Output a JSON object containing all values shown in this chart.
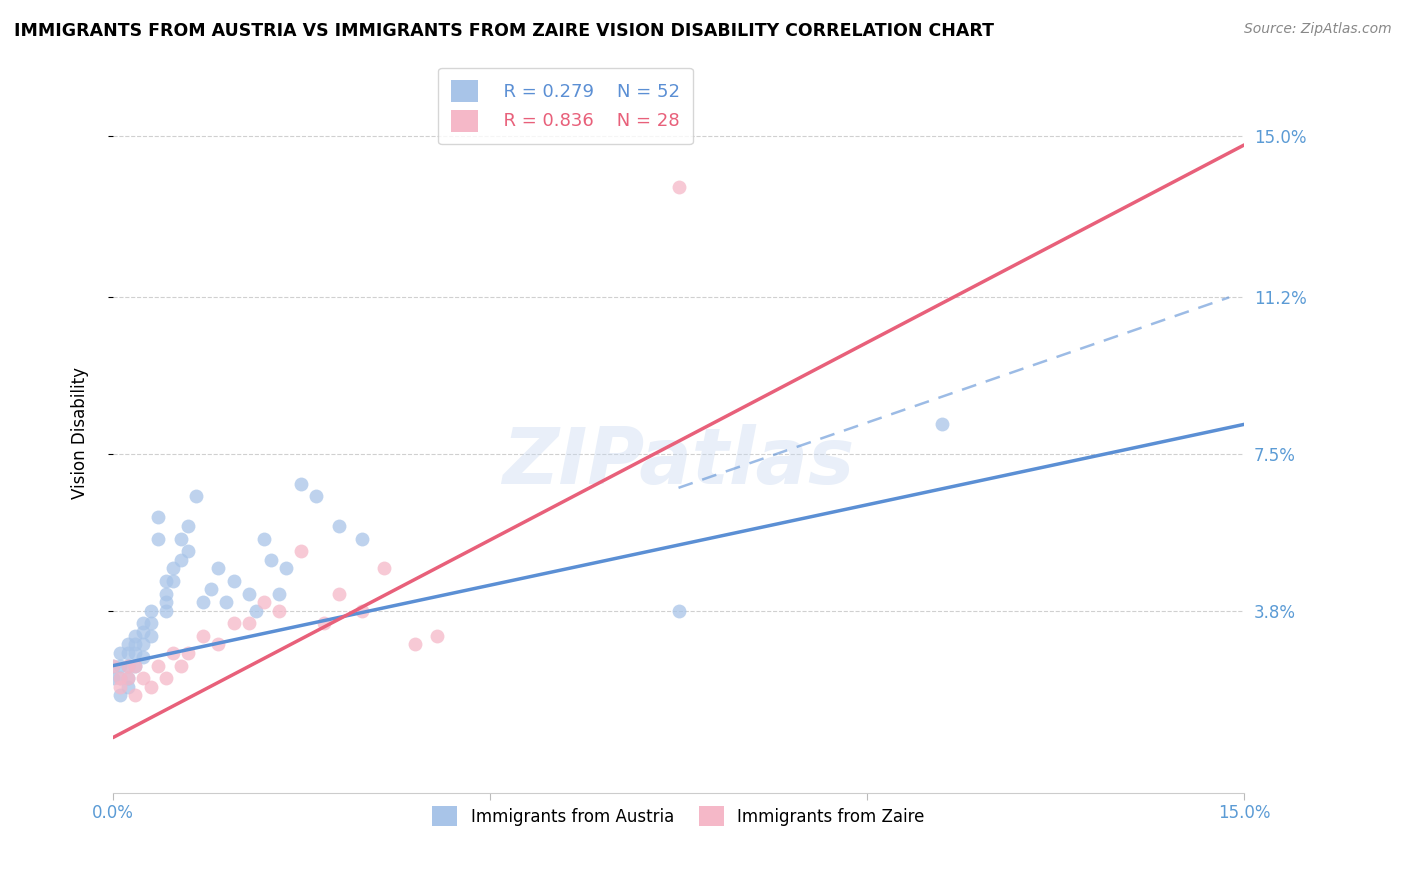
{
  "title": "IMMIGRANTS FROM AUSTRIA VS IMMIGRANTS FROM ZAIRE VISION DISABILITY CORRELATION CHART",
  "source": "Source: ZipAtlas.com",
  "ylabel": "Vision Disability",
  "xlim": [
    0.0,
    0.15
  ],
  "ylim": [
    -0.005,
    0.165
  ],
  "austria_color": "#a8c4e8",
  "austria_color_dark": "#5b8fd4",
  "zaire_color": "#f5b8c8",
  "zaire_color_dark": "#e8607a",
  "legend_R_austria": "R = 0.279",
  "legend_N_austria": "N = 52",
  "legend_R_zaire": "R = 0.836",
  "legend_N_zaire": "N = 28",
  "watermark": "ZIPatlas",
  "austria_x": [
    0.0,
    0.0,
    0.001,
    0.001,
    0.001,
    0.001,
    0.002,
    0.002,
    0.002,
    0.002,
    0.002,
    0.003,
    0.003,
    0.003,
    0.003,
    0.004,
    0.004,
    0.004,
    0.004,
    0.005,
    0.005,
    0.005,
    0.006,
    0.006,
    0.007,
    0.007,
    0.007,
    0.007,
    0.008,
    0.008,
    0.009,
    0.009,
    0.01,
    0.01,
    0.011,
    0.012,
    0.013,
    0.014,
    0.015,
    0.016,
    0.018,
    0.019,
    0.02,
    0.021,
    0.022,
    0.023,
    0.025,
    0.027,
    0.03,
    0.033,
    0.075,
    0.11
  ],
  "austria_y": [
    0.025,
    0.022,
    0.028,
    0.025,
    0.022,
    0.018,
    0.03,
    0.028,
    0.025,
    0.022,
    0.02,
    0.032,
    0.03,
    0.028,
    0.025,
    0.035,
    0.033,
    0.03,
    0.027,
    0.038,
    0.035,
    0.032,
    0.06,
    0.055,
    0.045,
    0.042,
    0.04,
    0.038,
    0.048,
    0.045,
    0.055,
    0.05,
    0.058,
    0.052,
    0.065,
    0.04,
    0.043,
    0.048,
    0.04,
    0.045,
    0.042,
    0.038,
    0.055,
    0.05,
    0.042,
    0.048,
    0.068,
    0.065,
    0.058,
    0.055,
    0.038,
    0.082
  ],
  "zaire_x": [
    0.0,
    0.001,
    0.001,
    0.002,
    0.002,
    0.003,
    0.003,
    0.004,
    0.005,
    0.006,
    0.007,
    0.008,
    0.009,
    0.01,
    0.012,
    0.014,
    0.016,
    0.018,
    0.02,
    0.022,
    0.025,
    0.028,
    0.03,
    0.033,
    0.036,
    0.04,
    0.043,
    0.075
  ],
  "zaire_y": [
    0.025,
    0.022,
    0.02,
    0.025,
    0.022,
    0.018,
    0.025,
    0.022,
    0.02,
    0.025,
    0.022,
    0.028,
    0.025,
    0.028,
    0.032,
    0.03,
    0.035,
    0.035,
    0.04,
    0.038,
    0.052,
    0.035,
    0.042,
    0.038,
    0.048,
    0.03,
    0.032,
    0.138
  ],
  "austria_line_x": [
    0.0,
    0.15
  ],
  "austria_line_y": [
    0.025,
    0.082
  ],
  "zaire_line_x": [
    0.0,
    0.15
  ],
  "zaire_line_y": [
    0.008,
    0.148
  ],
  "dash_line_x": [
    0.075,
    0.148
  ],
  "dash_line_y": [
    0.067,
    0.112
  ],
  "background_color": "#ffffff",
  "grid_color": "#d0d0d0",
  "tick_color": "#5b9bd5",
  "yticks": [
    0.038,
    0.075,
    0.112,
    0.15
  ],
  "ytick_labels": [
    "3.8%",
    "7.5%",
    "11.2%",
    "15.0%"
  ],
  "xtick_vals": [
    0.0,
    0.05,
    0.1,
    0.15
  ],
  "xtick_labels": [
    "0.0%",
    "",
    "",
    "15.0%"
  ]
}
